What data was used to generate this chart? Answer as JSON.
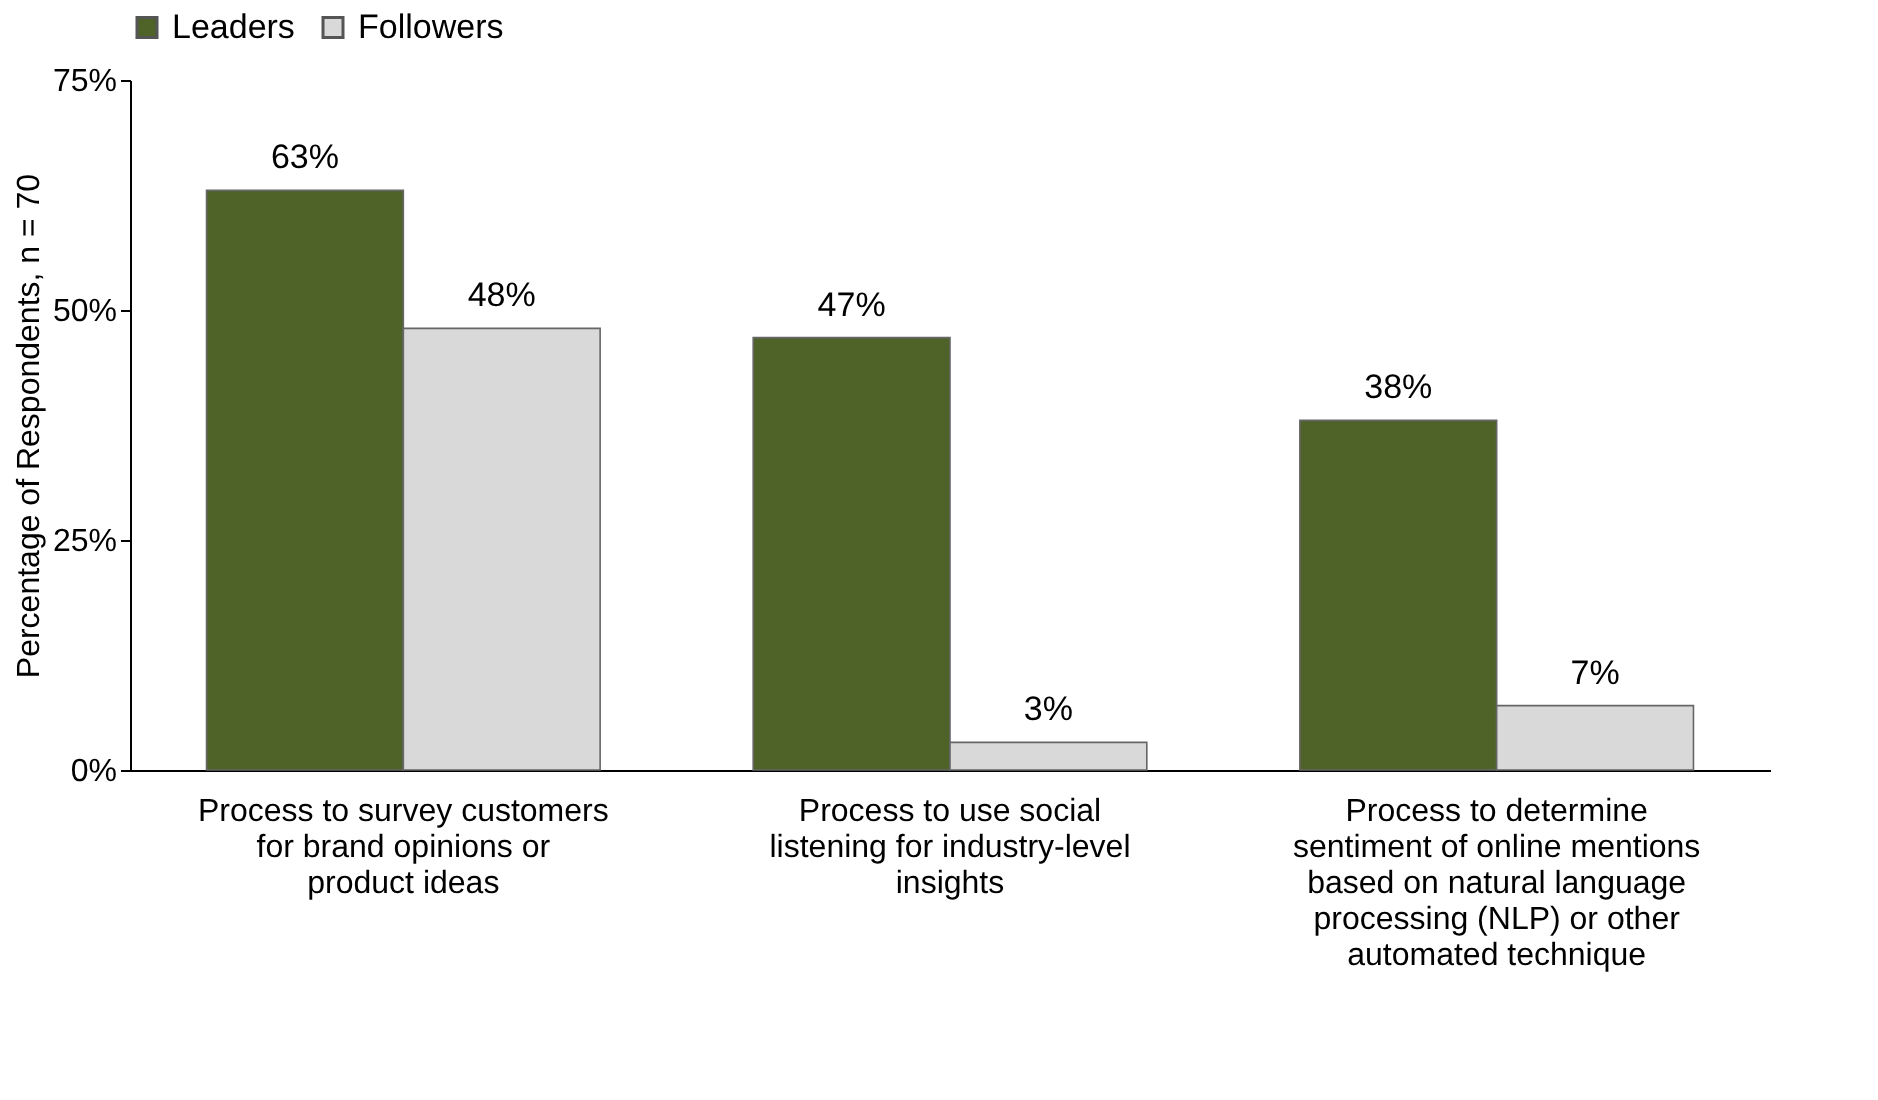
{
  "chart_data": {
    "type": "bar",
    "ylabel": "Percentage of Respondents, n = 70",
    "categories": [
      "Process to survey customers for brand opinions or product ideas",
      "Process to use social listening for industry-level insights",
      "Process to determine sentiment of online mentions based on natural language processing (NLP) or other automated technique"
    ],
    "series": [
      {
        "name": "Leaders",
        "color": "#4f6228",
        "values": [
          63,
          47,
          38
        ],
        "value_labels": [
          "63%",
          "47%",
          "38%"
        ]
      },
      {
        "name": "Followers",
        "color": "#d9d9d9",
        "values": [
          48,
          3,
          7
        ],
        "value_labels": [
          "48%",
          "3%",
          "7%"
        ]
      }
    ],
    "ylim": [
      0,
      75
    ],
    "yticks": [
      {
        "value": 0,
        "label": "0%"
      },
      {
        "value": 25,
        "label": "25%"
      },
      {
        "value": 50,
        "label": "50%"
      },
      {
        "value": 75,
        "label": "75%"
      }
    ],
    "grid": false,
    "legend": "top"
  }
}
